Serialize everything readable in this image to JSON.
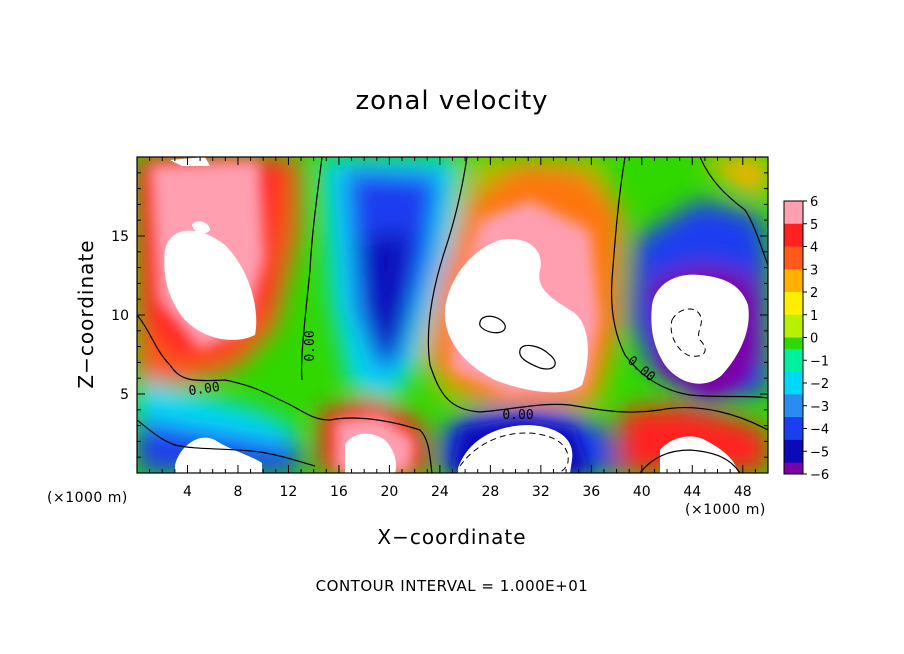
{
  "chart_data": {
    "type": "heatmap",
    "title": "zonal velocity",
    "xlabel": "X−coordinate",
    "ylabel": "Z−coordinate",
    "x_unit": "(×1000 m)",
    "y_unit": "(×1000 m)",
    "xlim": [
      0,
      50
    ],
    "ylim": [
      0,
      20
    ],
    "x_ticks": [
      "4",
      "8",
      "12",
      "16",
      "20",
      "24",
      "28",
      "32",
      "36",
      "40",
      "44",
      "48"
    ],
    "y_ticks": [
      "5",
      "10",
      "15"
    ],
    "colorbar": {
      "min": -6,
      "max": 6,
      "labels": [
        "6",
        "5",
        "4",
        "3",
        "2",
        "1",
        "0",
        "−1",
        "−2",
        "−3",
        "−4",
        "−5",
        "−6"
      ]
    },
    "contour_labels": [
      "0.00",
      "0.00",
      "0.00",
      "0.00"
    ],
    "contour_interval_text": "CONTOUR INTERVAL = 1.000E+01",
    "grid": false
  },
  "colors": {
    "plus6": "#ff9fb0",
    "plus5": "#ff2020",
    "plus4": "#ff5a1c",
    "plus3": "#ffb000",
    "plus2": "#ffee00",
    "plus1": "#b9f000",
    "zero": "#30d800",
    "minus1": "#00f0a0",
    "minus2": "#00d8f8",
    "minus3": "#2a8cf0",
    "minus4": "#1b3ef0",
    "minus5": "#0a0ab8",
    "minus6": "#7a00a8",
    "white": "#ffffff"
  }
}
